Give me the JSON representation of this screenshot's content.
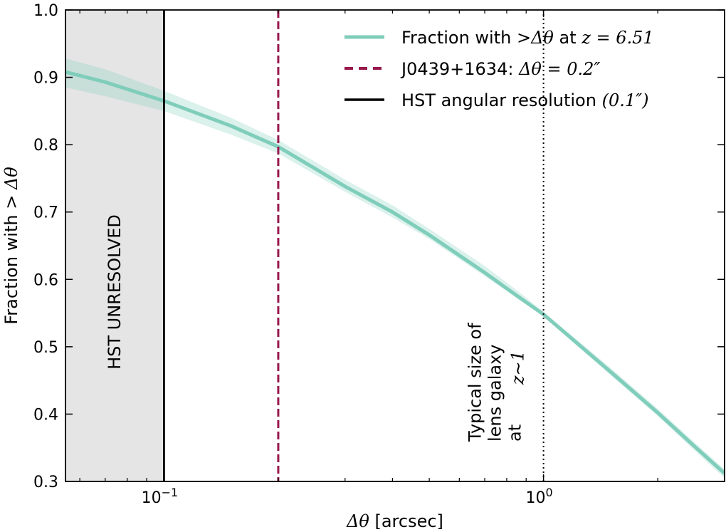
{
  "chart_data": {
    "type": "line",
    "xscale": "log",
    "xlim": [
      0.055,
      3.0
    ],
    "ylim": [
      0.3,
      1.0
    ],
    "xlabel": "Δθ [arcsec]",
    "ylabel": "Fraction with > Δθ",
    "yticks": [
      0.3,
      0.4,
      0.5,
      0.6,
      0.7,
      0.8,
      0.9,
      1.0
    ],
    "ytick_labels": [
      "0.3",
      "0.4",
      "0.5",
      "0.6",
      "0.7",
      "0.8",
      "0.9",
      "1.0"
    ],
    "xticks": [
      {
        "value": 0.1,
        "base": "10",
        "exp": "−1"
      },
      {
        "value": 1.0,
        "base": "10",
        "exp": "0"
      }
    ],
    "grid": false,
    "legend_position": "top-right",
    "series": [
      {
        "name": "Fraction with > Δθ at z = 6.51",
        "color": "#7fcdbb",
        "x": [
          0.055,
          0.07,
          0.1,
          0.15,
          0.2,
          0.3,
          0.4,
          0.5,
          0.7,
          0.85,
          1.0,
          1.5,
          2.0,
          2.5,
          3.0
        ],
        "y": [
          0.908,
          0.893,
          0.865,
          0.828,
          0.797,
          0.738,
          0.7,
          0.666,
          0.61,
          0.576,
          0.548,
          0.463,
          0.402,
          0.352,
          0.312
        ],
        "band_lower": [
          0.885,
          0.872,
          0.85,
          0.815,
          0.787,
          0.73,
          0.692,
          0.66,
          0.605,
          0.572,
          0.545,
          0.458,
          0.397,
          0.346,
          0.305
        ],
        "band_upper": [
          0.928,
          0.912,
          0.88,
          0.84,
          0.807,
          0.748,
          0.71,
          0.675,
          0.62,
          0.584,
          0.552,
          0.469,
          0.408,
          0.358,
          0.318
        ]
      }
    ],
    "vlines": [
      {
        "x": 0.2,
        "name": "J0439+1634: Δθ = 0.2″",
        "color": "#99184d",
        "style": "dashed"
      },
      {
        "x": 0.1,
        "name": "HST angular resolution (0.1″)",
        "color": "#000000",
        "style": "solid"
      },
      {
        "x": 1.0,
        "color": "#000000",
        "style": "dotted"
      }
    ],
    "shaded_region": {
      "x_from": 0.055,
      "x_to": 0.1,
      "color": "#e5e5e5",
      "label": "HST UNRESOLVED"
    },
    "annotation": {
      "lines": [
        "Typical size of",
        "lens galaxy",
        "at"
      ],
      "math": "z∼1"
    },
    "legend": [
      {
        "text": "Fraction with ",
        "math": ">Δθ",
        "text2": " at ",
        "math2": "z = 6.51",
        "color": "#7fcdbb",
        "style": "solid"
      },
      {
        "text": "J0439+1634: ",
        "math": "Δθ = 0.2″",
        "color": "#99184d",
        "style": "dashed"
      },
      {
        "text": "HST angular resolution ",
        "math": "(0.1″)",
        "color": "#000000",
        "style": "solid"
      }
    ]
  }
}
